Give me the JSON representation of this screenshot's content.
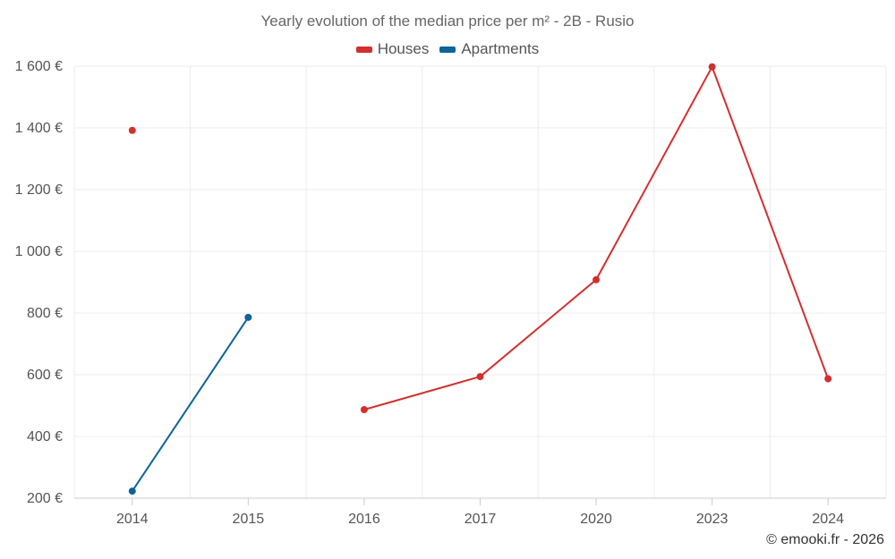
{
  "chart_data": {
    "type": "line",
    "title": "Yearly evolution of the median price per m² - 2B - Rusio",
    "categories": [
      "2014",
      "2015",
      "2016",
      "2017",
      "2020",
      "2023",
      "2024"
    ],
    "ylim": [
      200,
      1600
    ],
    "yticks": [
      200,
      400,
      600,
      800,
      1000,
      1200,
      1400,
      1600
    ],
    "ytick_labels": [
      "200 €",
      "400 €",
      "600 €",
      "800 €",
      "1 000 €",
      "1 200 €",
      "1 400 €",
      "1 600 €"
    ],
    "grid": true,
    "legend_position": "top-center",
    "series": [
      {
        "name": "Houses",
        "color": "#d32f2f",
        "values": [
          1392,
          null,
          487,
          594,
          908,
          1598,
          587
        ]
      },
      {
        "name": "Apartments",
        "color": "#0d6496",
        "values": [
          223,
          786,
          null,
          null,
          null,
          null,
          null
        ]
      }
    ]
  },
  "watermark": "© emooki.fr - 2026"
}
